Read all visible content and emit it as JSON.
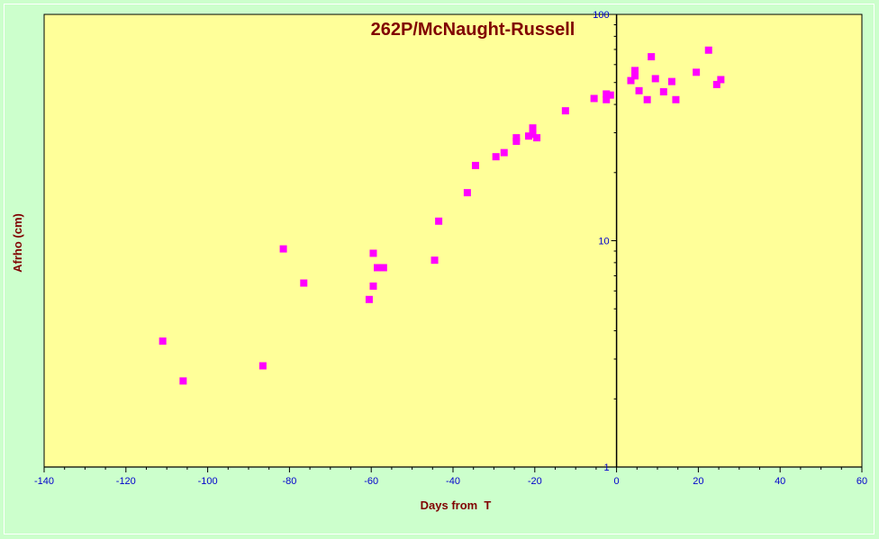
{
  "chart_data": {
    "type": "scatter",
    "title": "262P/McNaught-Russell",
    "xlabel": "Days from  T",
    "ylabel": "Afrho (cm)",
    "xlim": [
      -140,
      60
    ],
    "ylim": [
      1,
      100
    ],
    "yscale": "log",
    "x_ticks": [
      -140,
      -120,
      -100,
      -80,
      -60,
      -40,
      -20,
      0,
      20,
      40,
      60
    ],
    "y_ticks": [
      1,
      10,
      100
    ],
    "grid": false,
    "colors": {
      "plot_background": "#ffff99",
      "page_background": "#ccffcc",
      "marker": "#ff00ff",
      "tick_labels": "#0000cc",
      "titles": "#800000"
    },
    "points": [
      {
        "x": -111,
        "y": 3.6
      },
      {
        "x": -106,
        "y": 2.4
      },
      {
        "x": -86.5,
        "y": 2.8
      },
      {
        "x": -81.5,
        "y": 9.2
      },
      {
        "x": -76.5,
        "y": 6.5
      },
      {
        "x": -60.5,
        "y": 5.5
      },
      {
        "x": -59.5,
        "y": 8.8
      },
      {
        "x": -59.5,
        "y": 6.3
      },
      {
        "x": -58.5,
        "y": 7.6
      },
      {
        "x": -57,
        "y": 7.6
      },
      {
        "x": -44.5,
        "y": 8.2
      },
      {
        "x": -43.5,
        "y": 12.2
      },
      {
        "x": -36.5,
        "y": 16.3
      },
      {
        "x": -34.5,
        "y": 21.5
      },
      {
        "x": -29.5,
        "y": 23.5
      },
      {
        "x": -27.5,
        "y": 24.5
      },
      {
        "x": -24.5,
        "y": 27.5
      },
      {
        "x": -24.5,
        "y": 28.5
      },
      {
        "x": -21.5,
        "y": 29
      },
      {
        "x": -20.5,
        "y": 29.5
      },
      {
        "x": -20.5,
        "y": 31.5
      },
      {
        "x": -19.5,
        "y": 28.5
      },
      {
        "x": -12.5,
        "y": 37.5
      },
      {
        "x": -5.5,
        "y": 42.5
      },
      {
        "x": -2.5,
        "y": 42
      },
      {
        "x": -2.5,
        "y": 44.5
      },
      {
        "x": -1.5,
        "y": 44
      },
      {
        "x": 3.5,
        "y": 51
      },
      {
        "x": 4.5,
        "y": 53.5
      },
      {
        "x": 4.5,
        "y": 56.5
      },
      {
        "x": 5.5,
        "y": 46
      },
      {
        "x": 7.5,
        "y": 42
      },
      {
        "x": 8.5,
        "y": 65
      },
      {
        "x": 9.5,
        "y": 52
      },
      {
        "x": 11.5,
        "y": 45.5
      },
      {
        "x": 13.5,
        "y": 50.5
      },
      {
        "x": 14.5,
        "y": 42
      },
      {
        "x": 19.5,
        "y": 55.5
      },
      {
        "x": 22.5,
        "y": 69.5
      },
      {
        "x": 24.5,
        "y": 49
      },
      {
        "x": 25.5,
        "y": 51.5
      }
    ]
  }
}
